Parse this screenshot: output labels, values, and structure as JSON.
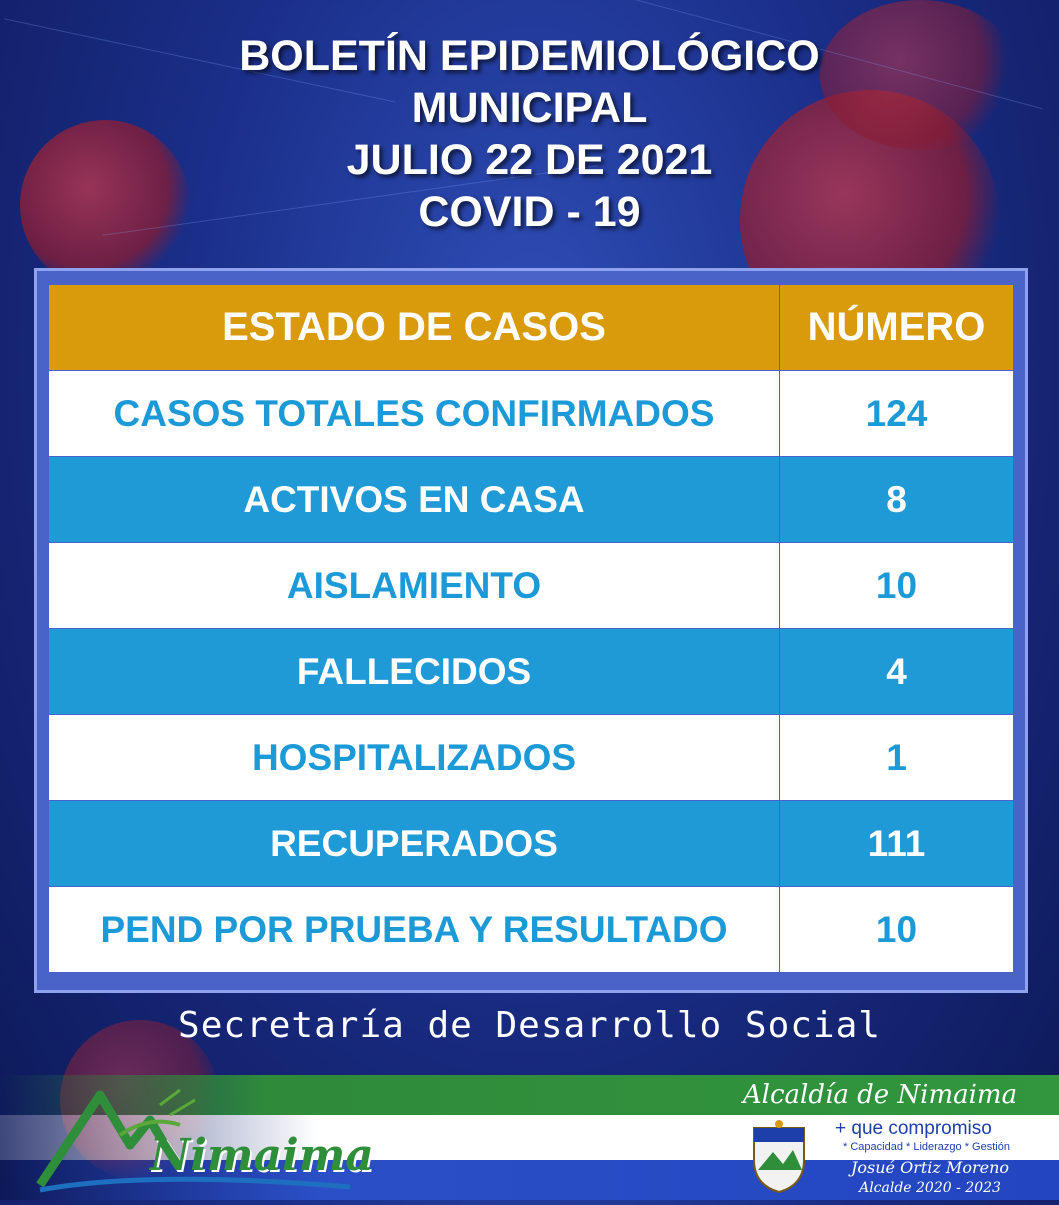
{
  "title": {
    "line1": "BOLETÍN EPIDEMIOLÓGICO",
    "line2": "MUNICIPAL",
    "line3": "JULIO 22 DE 2021",
    "line4": "COVID - 19"
  },
  "table": {
    "header": {
      "col1": "ESTADO DE CASOS",
      "col2": "NÚMERO"
    },
    "rows": [
      {
        "label": "CASOS TOTALES CONFIRMADOS",
        "value": "124"
      },
      {
        "label": "ACTIVOS EN CASA",
        "value": "8"
      },
      {
        "label": "AISLAMIENTO",
        "value": "10"
      },
      {
        "label": "FALLECIDOS",
        "value": "4"
      },
      {
        "label": "HOSPITALIZADOS",
        "value": "1"
      },
      {
        "label": "RECUPERADOS",
        "value": "111"
      },
      {
        "label": "PEND POR PRUEBA Y RESULTADO",
        "value": "10"
      }
    ]
  },
  "footer": {
    "department": "Secretaría de Desarrollo Social",
    "logo_text": "Nimaima",
    "alcaldia": "Alcaldía de Nimaima",
    "slogan": "+ que compromiso",
    "values": "* Capacidad * Liderazgo * Gestión",
    "mayor": "Josué Ortiz Moreno",
    "period": "Alcalde 2020 - 2023"
  },
  "colors": {
    "header_bg": "#d99a0c",
    "blue_row": "#1f9ad6",
    "white_row": "#ffffff",
    "text_blue": "#1b9ad7"
  }
}
